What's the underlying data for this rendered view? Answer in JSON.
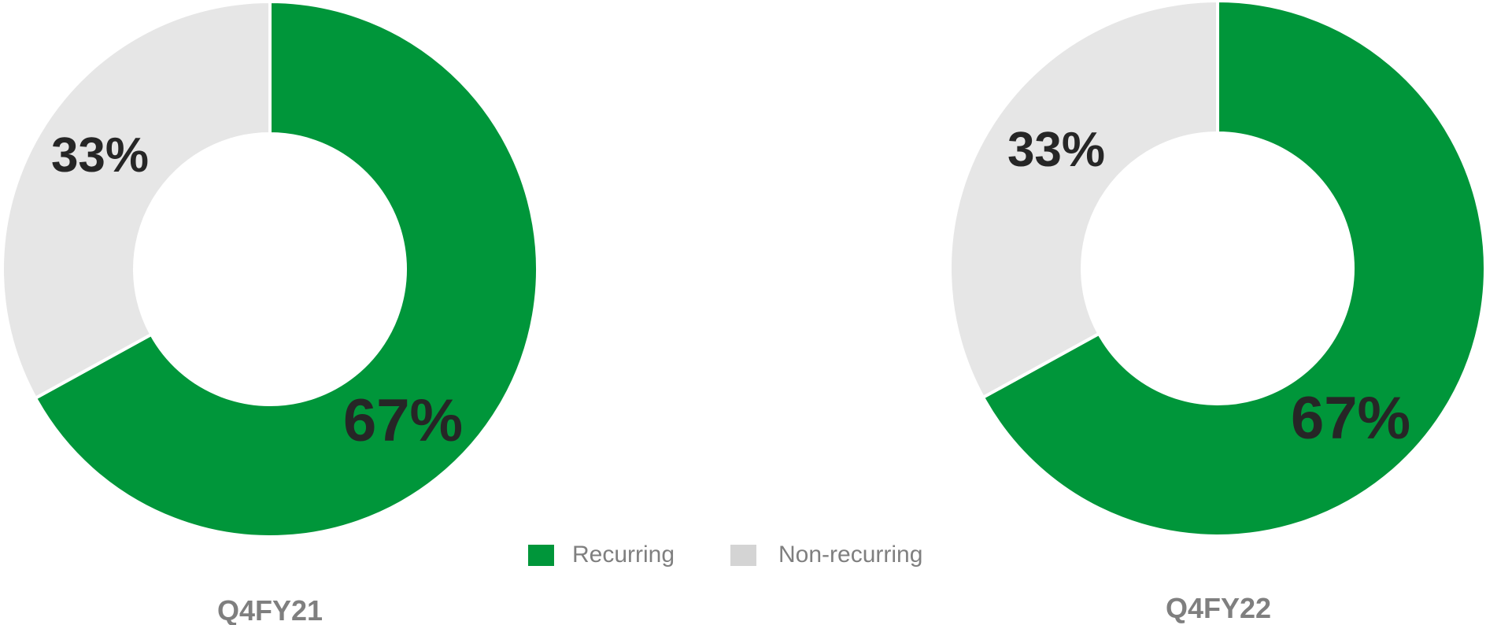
{
  "chart_data": [
    {
      "type": "pie",
      "subtype": "donut",
      "period": "Q4FY21",
      "slices": [
        {
          "name": "Recurring",
          "value": 67,
          "label": "67%",
          "color": "#00963a"
        },
        {
          "name": "Non-recurring",
          "value": 33,
          "label": "33%",
          "color": "#e6e6e6"
        }
      ]
    },
    {
      "type": "pie",
      "subtype": "donut",
      "period": "Q4FY22",
      "slices": [
        {
          "name": "Recurring",
          "value": 67,
          "label": "67%",
          "color": "#00963a"
        },
        {
          "name": "Non-recurring",
          "value": 33,
          "label": "33%",
          "color": "#e6e6e6"
        }
      ]
    }
  ],
  "legend": {
    "position": "bottom-center",
    "items": [
      {
        "label": "Recurring",
        "color": "#00963a"
      },
      {
        "label": "Non-recurring",
        "color": "#d4d4d4"
      }
    ]
  }
}
